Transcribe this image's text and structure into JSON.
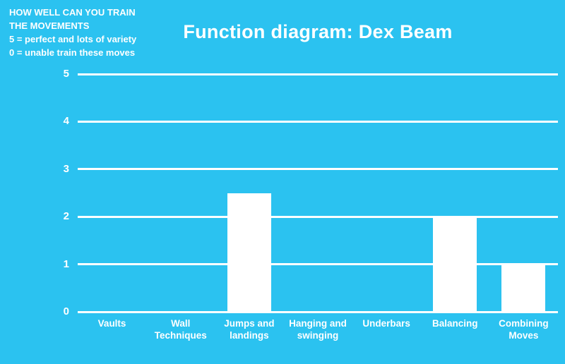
{
  "colors": {
    "background": "#2BC2F0",
    "text": "#FFFFFF",
    "bar": "#FFFFFF",
    "gridline": "#FFFFFF"
  },
  "note": {
    "lines": [
      "HOW WELL CAN YOU TRAIN",
      "THE MOVEMENTS",
      "5 = perfect and lots of variety",
      "0 = unable train these moves"
    ]
  },
  "header": {
    "title": "Function diagram: Dex Beam"
  },
  "chart_data": {
    "type": "bar",
    "title": "Function diagram: Dex Beam",
    "categories": [
      "Vaults",
      "Wall Techniques",
      "Jumps and landings",
      "Hanging and swinging",
      "Underbars",
      "Balancing",
      "Combining Moves"
    ],
    "values": [
      0,
      0,
      2.5,
      0,
      0,
      2,
      1
    ],
    "ylim": [
      0,
      5
    ],
    "yticks": [
      0,
      1,
      2,
      3,
      4,
      5
    ],
    "grid": true,
    "legend": "none",
    "xlabel": "",
    "ylabel": ""
  }
}
